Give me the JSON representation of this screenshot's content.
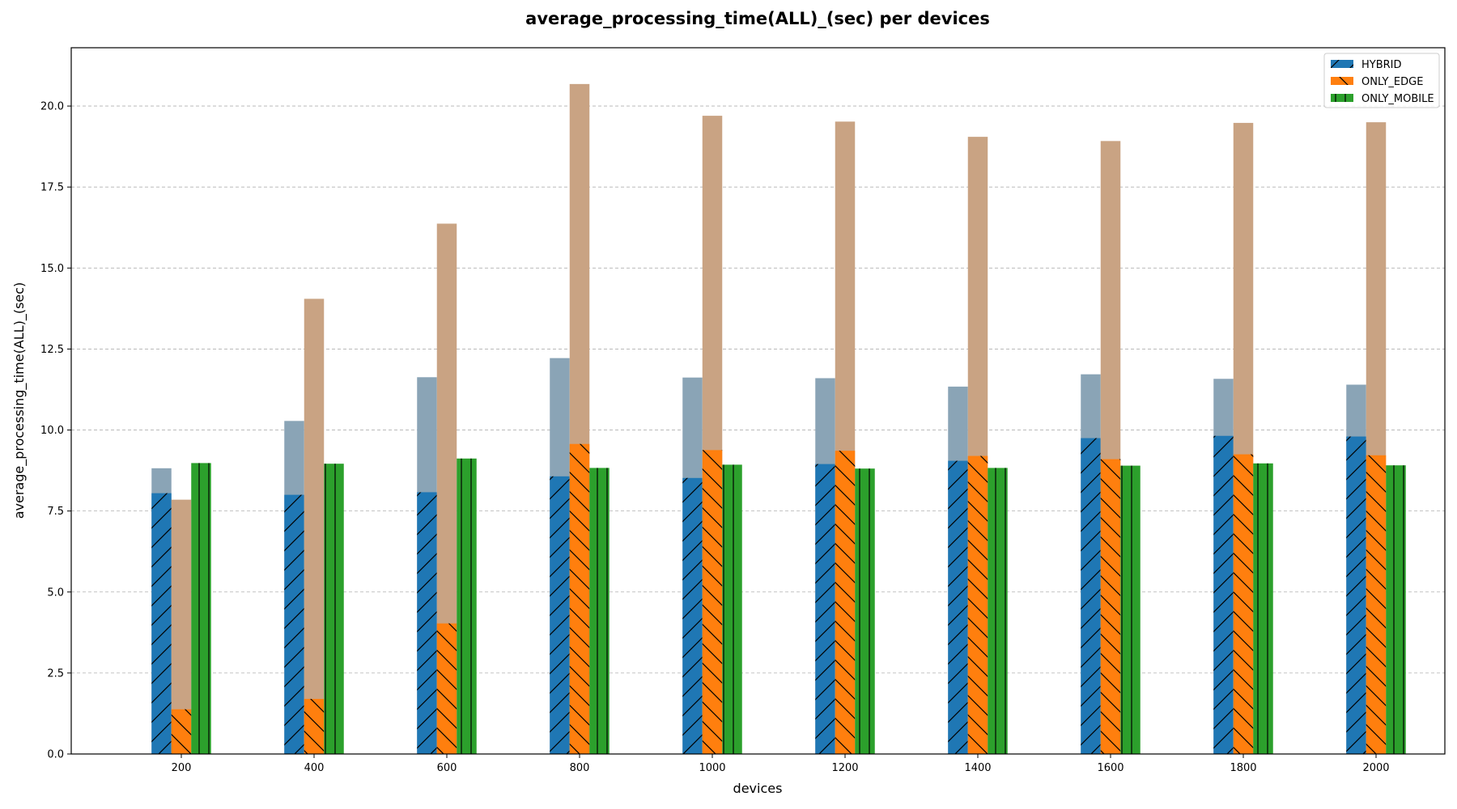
{
  "chart_data": {
    "type": "bar",
    "title": "average_processing_time(ALL)_(sec) per devices",
    "xlabel": "devices",
    "ylabel": "average_processing_time(ALL)_(sec)",
    "ylim": [
      0,
      21.8
    ],
    "yticks": [
      0.0,
      2.5,
      5.0,
      7.5,
      10.0,
      12.5,
      15.0,
      17.5,
      20.0
    ],
    "ytick_labels": [
      "0.0",
      "2.5",
      "5.0",
      "7.5",
      "10.0",
      "12.5",
      "15.0",
      "17.5",
      "20.0"
    ],
    "grid": "horizontal dashed",
    "legend_position": "top-right",
    "categories": [
      "200",
      "400",
      "600",
      "800",
      "1000",
      "1200",
      "1400",
      "1600",
      "1800",
      "2000"
    ],
    "series": [
      {
        "name": "HYBRID",
        "color": "#1f77b4",
        "background_color": "#8aa4b6",
        "hatch": "slash",
        "values": [
          8.05,
          8.0,
          8.08,
          8.57,
          8.52,
          8.95,
          9.05,
          9.75,
          9.82,
          9.8
        ],
        "upper_values": [
          8.82,
          10.28,
          11.63,
          12.22,
          11.62,
          11.6,
          11.34,
          11.72,
          11.58,
          11.4
        ]
      },
      {
        "name": "ONLY_EDGE",
        "color": "#ff7f0e",
        "background_color": "#c9a383",
        "hatch": "backslash",
        "values": [
          1.38,
          1.7,
          4.03,
          9.57,
          9.38,
          9.36,
          9.2,
          9.1,
          9.25,
          9.22
        ],
        "upper_values": [
          7.85,
          14.05,
          16.37,
          20.68,
          19.7,
          19.52,
          19.05,
          18.92,
          19.48,
          19.5
        ]
      },
      {
        "name": "ONLY_MOBILE",
        "color": "#2ca02c",
        "background_color": "#2ca02c",
        "hatch": "vertical",
        "values": [
          8.98,
          8.96,
          9.12,
          8.83,
          8.93,
          8.81,
          8.83,
          8.9,
          8.97,
          8.91
        ]
      }
    ]
  }
}
